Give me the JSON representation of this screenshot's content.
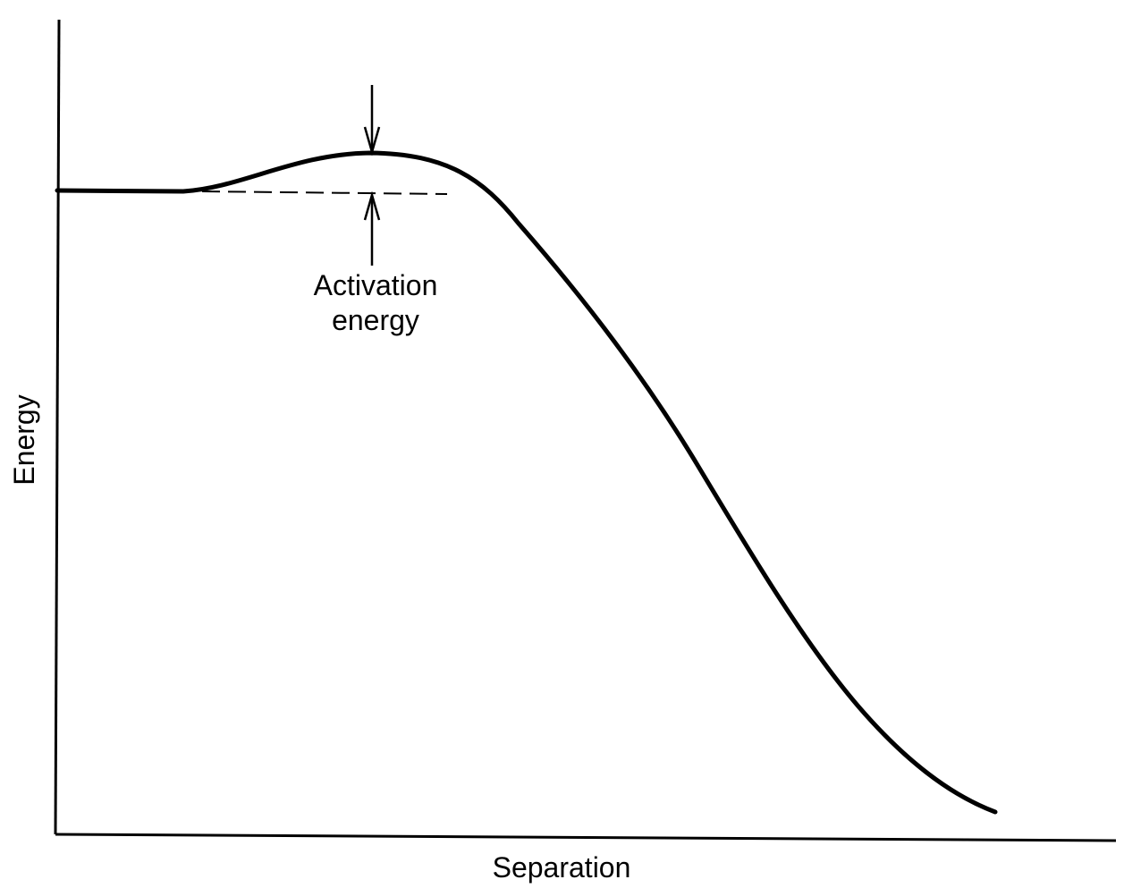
{
  "diagram": {
    "x_axis_label": "Separation",
    "y_axis_label": "Energy",
    "annotation": {
      "line1": "Activation",
      "line2": "energy"
    }
  }
}
